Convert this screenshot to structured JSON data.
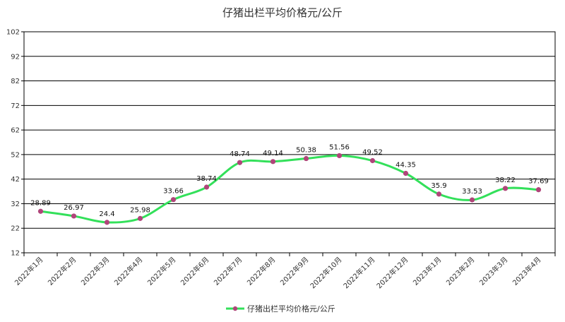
{
  "chart_data": {
    "type": "line",
    "title": "仔猪出栏平均价格元/公斤",
    "categories": [
      "2022年1月",
      "2022年2月",
      "2022年3月",
      "2022年4月",
      "2022年5月",
      "2022年6月",
      "2022年7月",
      "2022年8月",
      "2022年9月",
      "2022年10月",
      "2022年11月",
      "2022年12月",
      "2023年1月",
      "2023年2月",
      "2023年3月",
      "2023年4月"
    ],
    "series": [
      {
        "name": "仔猪出栏平均价格元/公斤",
        "values": [
          28.89,
          26.97,
          24.4,
          25.98,
          33.66,
          38.74,
          48.74,
          49.14,
          50.38,
          51.56,
          49.52,
          44.35,
          35.9,
          33.53,
          38.22,
          37.69
        ],
        "labels": [
          "28.89",
          "26.97",
          "24.4",
          "25.98",
          "33.66",
          "38.74",
          "48.74",
          "49.14",
          "50.38",
          "51.56",
          "49.52",
          "44.35",
          "35.9",
          "33.53",
          "38.22",
          "37.69"
        ]
      }
    ],
    "yticks": [
      "12",
      "22",
      "32",
      "42",
      "52",
      "62",
      "72",
      "82",
      "92",
      "102"
    ],
    "ylim": [
      12,
      102
    ],
    "grid": true,
    "legend_position": "bottom",
    "colors": {
      "line": "#33e05a",
      "marker": "#b0457a",
      "grid": "#000000"
    }
  }
}
